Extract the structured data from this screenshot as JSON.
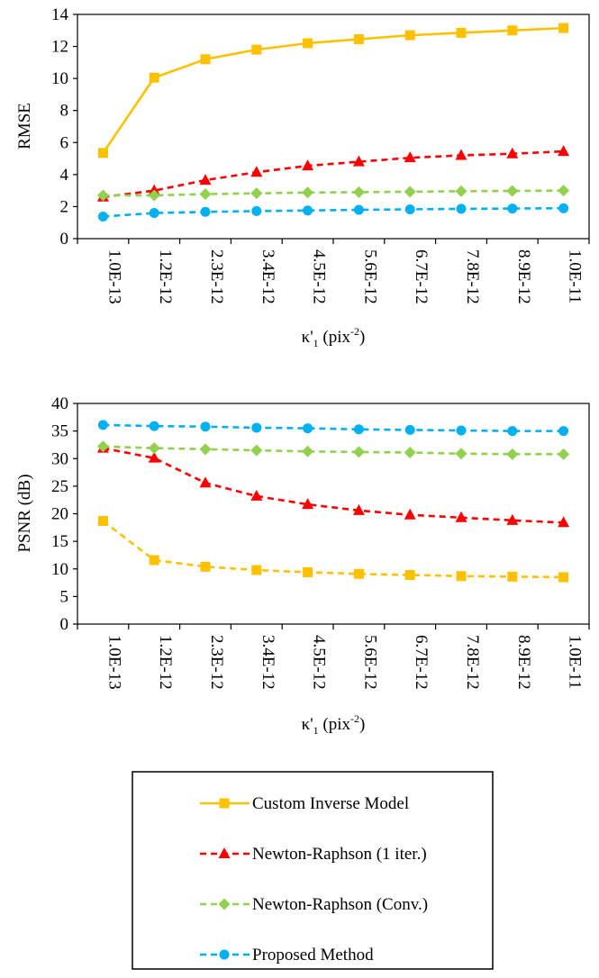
{
  "chart_data": [
    {
      "type": "line",
      "title": "",
      "xlabel_main": "κ'",
      "xlabel_sub": "1",
      "xlabel_unit": " (pix",
      "xlabel_sup": "-2",
      "xlabel_close": ")",
      "ylabel": "RMSE",
      "ylim": [
        0,
        14
      ],
      "yticks": [
        "0",
        "2",
        "4",
        "6",
        "8",
        "10",
        "12",
        "14"
      ],
      "categories": [
        "1.0E-13",
        "1.2E-12",
        "2.3E-12",
        "3.4E-12",
        "4.5E-12",
        "5.6E-12",
        "6.7E-12",
        "7.8E-12",
        "8.9E-12",
        "1.0E-11"
      ],
      "series": [
        {
          "name": "Custom Inverse Model",
          "values": [
            5.35,
            10.05,
            11.2,
            11.8,
            12.2,
            12.45,
            12.7,
            12.85,
            13.0,
            13.15
          ]
        },
        {
          "name": "Newton-Raphson (1 iter.)",
          "values": [
            2.6,
            3.0,
            3.65,
            4.15,
            4.55,
            4.8,
            5.05,
            5.2,
            5.3,
            5.45
          ]
        },
        {
          "name": "Newton-Raphson (Conv.)",
          "values": [
            2.7,
            2.7,
            2.78,
            2.83,
            2.88,
            2.9,
            2.93,
            2.96,
            2.98,
            3.0
          ]
        },
        {
          "name": "Proposed Method",
          "values": [
            1.38,
            1.6,
            1.67,
            1.72,
            1.76,
            1.8,
            1.83,
            1.86,
            1.88,
            1.9
          ]
        }
      ]
    },
    {
      "type": "line",
      "title": "",
      "xlabel_main": "κ'",
      "xlabel_sub": "1",
      "xlabel_unit": " (pix",
      "xlabel_sup": "-2",
      "xlabel_close": ")",
      "ylabel": "PSNR (dB)",
      "ylim": [
        0,
        40
      ],
      "yticks": [
        "0",
        "5",
        "10",
        "15",
        "20",
        "25",
        "30",
        "35",
        "40"
      ],
      "categories": [
        "1.0E-13",
        "1.2E-12",
        "2.3E-12",
        "3.4E-12",
        "4.5E-12",
        "5.6E-12",
        "6.7E-12",
        "7.8E-12",
        "8.9E-12",
        "1.0E-11"
      ],
      "series": [
        {
          "name": "Custom Inverse Model",
          "values": [
            18.7,
            11.6,
            10.4,
            9.8,
            9.4,
            9.1,
            8.9,
            8.7,
            8.6,
            8.5
          ]
        },
        {
          "name": "Newton-Raphson (1 iter.)",
          "values": [
            31.9,
            30.1,
            25.6,
            23.2,
            21.7,
            20.6,
            19.8,
            19.3,
            18.8,
            18.4
          ]
        },
        {
          "name": "Newton-Raphson (Conv.)",
          "values": [
            32.2,
            31.9,
            31.7,
            31.5,
            31.3,
            31.2,
            31.1,
            30.9,
            30.8,
            30.8
          ]
        },
        {
          "name": "Proposed Method",
          "values": [
            36.1,
            35.9,
            35.8,
            35.6,
            35.5,
            35.3,
            35.2,
            35.1,
            35.0,
            35.0
          ]
        }
      ]
    }
  ],
  "legend": {
    "items": [
      {
        "label": "Custom Inverse Model",
        "color": "#FFC000",
        "marker": "square",
        "dash": "solid"
      },
      {
        "label": "Newton-Raphson (1 iter.)",
        "color": "#FF0000",
        "marker": "triangle",
        "dash": "dashed"
      },
      {
        "label": "Newton-Raphson (Conv.)",
        "color": "#92D050",
        "marker": "diamond",
        "dash": "dashed"
      },
      {
        "label": "Proposed Method",
        "color": "#00B0F0",
        "marker": "circle",
        "dash": "dashed"
      }
    ]
  },
  "styles": {
    "top_first_series_dash": "solid",
    "bottom_first_series_dash": "dashed"
  }
}
